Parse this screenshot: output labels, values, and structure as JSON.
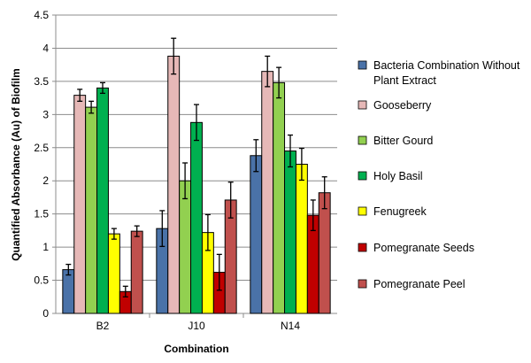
{
  "chart_data": {
    "type": "bar",
    "title": "",
    "xlabel": "Combination",
    "ylabel": "Quantified Absorbance (Au) of Biofilm",
    "ylim": [
      0,
      4.5
    ],
    "yticks": [
      "0",
      "0.5",
      "1",
      "1.5",
      "2",
      "2.5",
      "3",
      "3.5",
      "4",
      "4.5"
    ],
    "grid": true,
    "legend_position": "right",
    "categories": [
      "B2",
      "J10",
      "N14"
    ],
    "series": [
      {
        "name": "Bacteria Combination Without Plant Extract",
        "color": "#4a72a8",
        "values": [
          0.66,
          1.28,
          2.38
        ],
        "errors": [
          0.08,
          0.27,
          0.24
        ]
      },
      {
        "name": "Gooseberry",
        "color": "#e6b8b7",
        "values": [
          3.29,
          3.88,
          3.65
        ],
        "errors": [
          0.09,
          0.27,
          0.23
        ]
      },
      {
        "name": "Bitter Gourd",
        "color": "#92d050",
        "values": [
          3.11,
          2.0,
          3.48
        ],
        "errors": [
          0.09,
          0.27,
          0.23
        ]
      },
      {
        "name": "Holy Basil",
        "color": "#00b050",
        "values": [
          3.4,
          2.88,
          2.45
        ],
        "errors": [
          0.08,
          0.27,
          0.24
        ]
      },
      {
        "name": "Fenugreek",
        "color": "#ffff00",
        "values": [
          1.2,
          1.22,
          2.25
        ],
        "errors": [
          0.08,
          0.27,
          0.24
        ]
      },
      {
        "name": "Pomegranate Seeds",
        "color": "#c00000",
        "values": [
          0.33,
          0.62,
          1.48
        ],
        "errors": [
          0.08,
          0.27,
          0.23
        ]
      },
      {
        "name": "Pomegranate Peel",
        "color": "#c0504d",
        "values": [
          1.24,
          1.71,
          1.82
        ],
        "errors": [
          0.08,
          0.27,
          0.24
        ]
      }
    ]
  }
}
